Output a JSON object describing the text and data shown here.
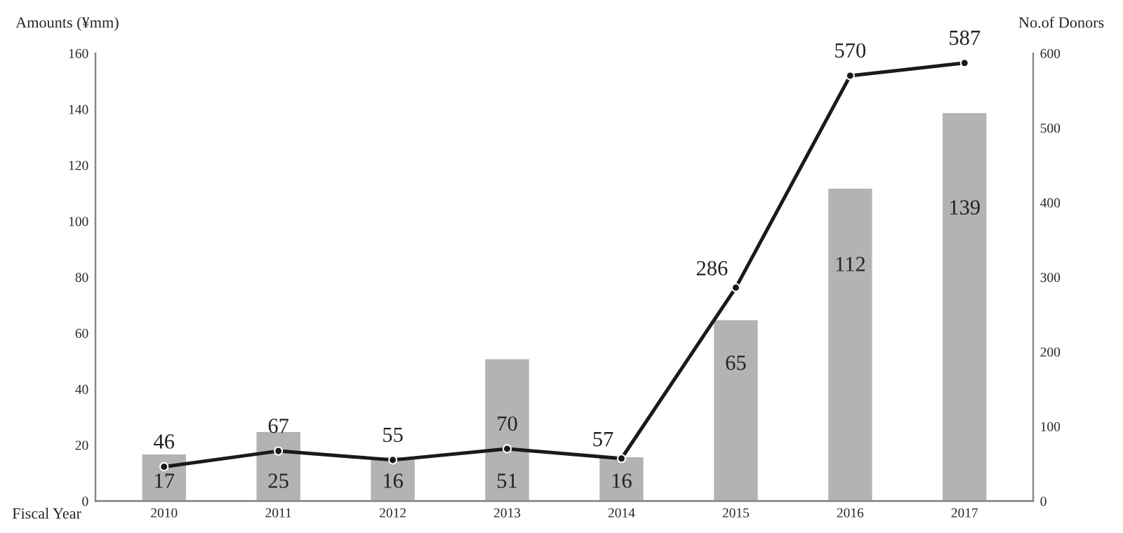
{
  "chart_data": {
    "type": "bar",
    "xlabel": "Fiscal Year",
    "ylabel": "Amounts (¥mm)",
    "y2label": "No.of Donors",
    "categories": [
      "2010",
      "2011",
      "2012",
      "2013",
      "2014",
      "2015",
      "2016",
      "2017"
    ],
    "series": [
      {
        "color": "#b3b3b3",
        "values": [
          17,
          25,
          16,
          51,
          16,
          65,
          112,
          139
        ]
      },
      {
        "type": "line",
        "axis": "y2",
        "color": "#1a1a1a",
        "marker": "circle",
        "values": [
          46,
          67,
          55,
          70,
          57,
          286,
          570,
          587
        ]
      }
    ],
    "ylim": [
      0,
      160
    ],
    "yticks": [
      0,
      20,
      40,
      60,
      80,
      100,
      120,
      140,
      160
    ],
    "y2lim": [
      0,
      600
    ],
    "y2ticks": [
      0,
      100,
      200,
      300,
      400,
      500,
      600
    ],
    "data_labels": true,
    "grid": false,
    "legend": false
  }
}
